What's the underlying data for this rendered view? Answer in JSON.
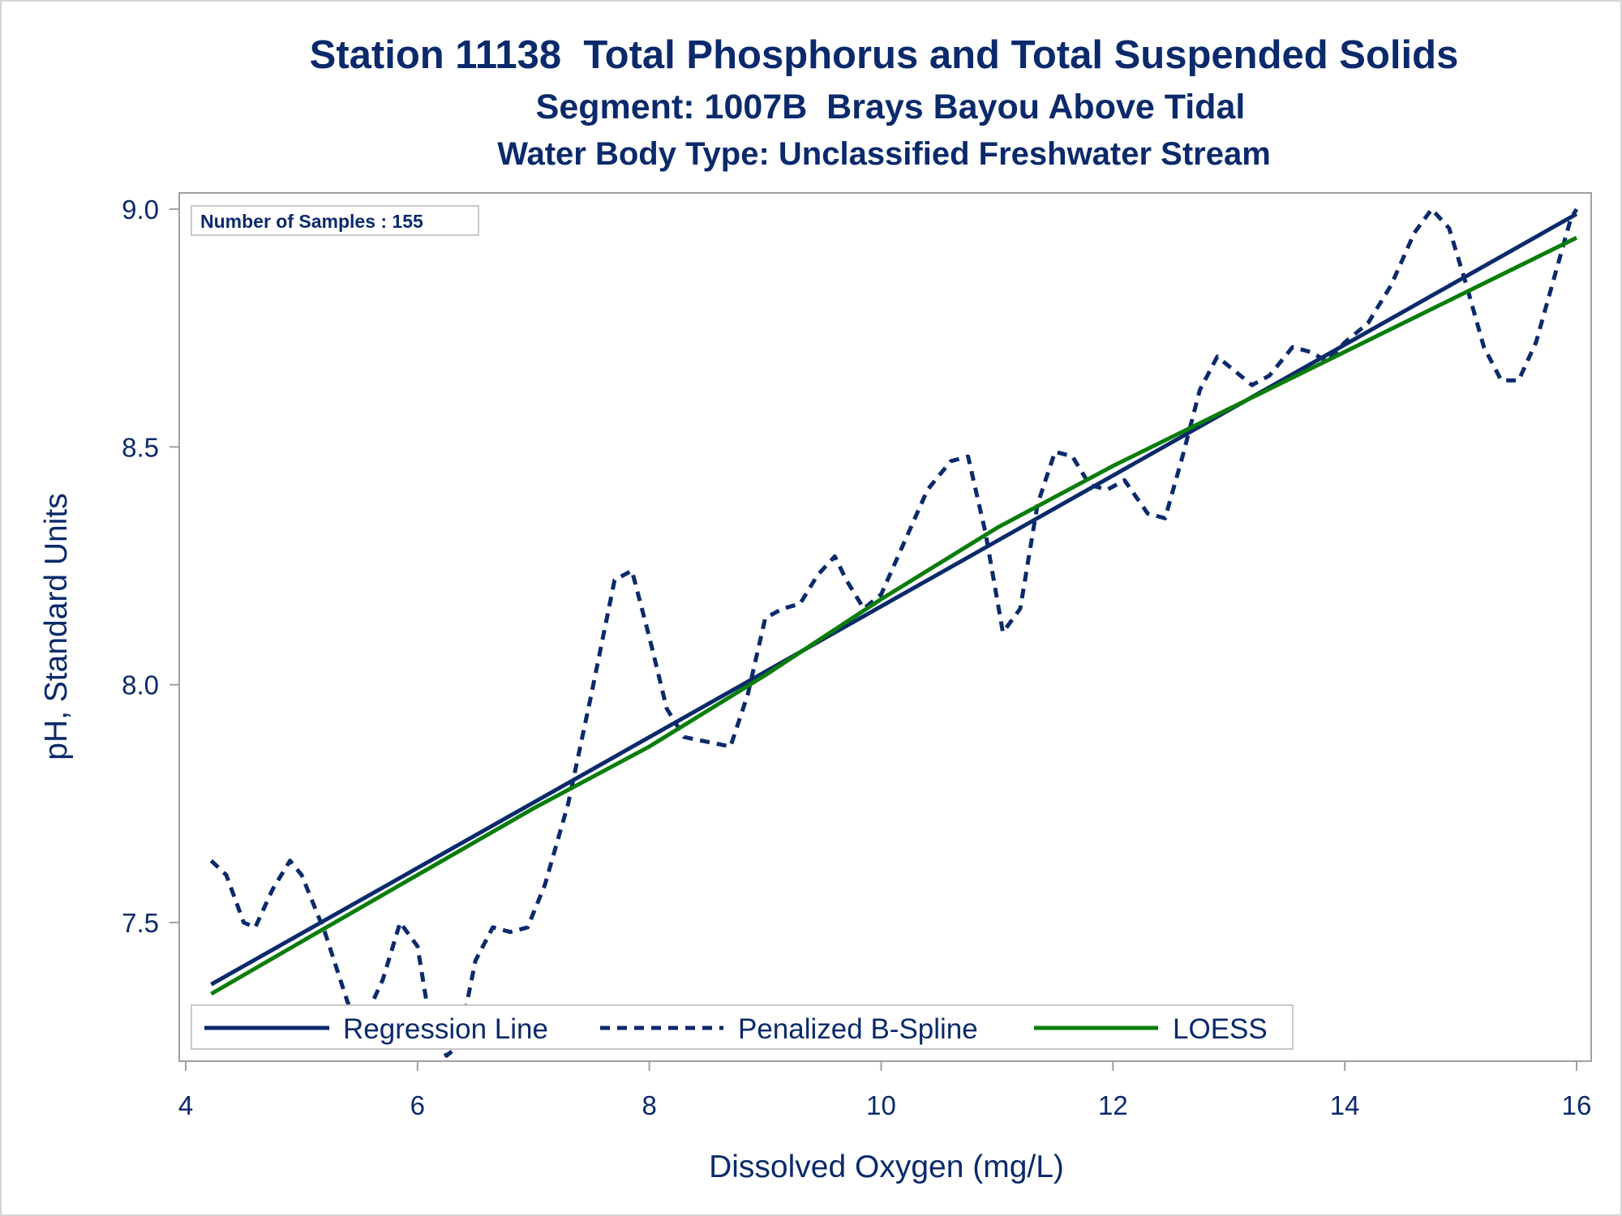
{
  "titles": {
    "line1": "Station 11138  Total Phosphorus and Total Suspended Solids",
    "line2": "Segment: 1007B  Brays Bayou Above Tidal",
    "line3": "Water Body Type: Unclassified Freshwater Stream"
  },
  "inset_label": "Number of Samples : 155",
  "colors": {
    "text": "#0b2a6b",
    "regression": "#0b2a6b",
    "spline": "#0b2a6b",
    "loess": "#0a7d0a",
    "frame": "#a0a0a0"
  },
  "chart_data": {
    "type": "line",
    "xlabel": "Dissolved Oxygen (mg/L)",
    "ylabel": "pH, Standard Units",
    "xlim": [
      4,
      16
    ],
    "ylim": [
      7.2,
      9.02
    ],
    "xticks": [
      "4",
      "6",
      "8",
      "10",
      "12",
      "14",
      "16"
    ],
    "yticks": [
      "7.5",
      "8.0",
      "8.5",
      "9.0"
    ],
    "grid": false,
    "legend_position": "bottom-inside",
    "series": [
      {
        "name": "Regression Line",
        "style": "solid",
        "x": [
          4.22,
          16.0
        ],
        "y": [
          7.37,
          8.99
        ]
      },
      {
        "name": "Penalized B-Spline",
        "style": "dashed",
        "x": [
          4.22,
          4.35,
          4.5,
          4.6,
          4.75,
          4.9,
          5.0,
          5.2,
          5.4,
          5.55,
          5.7,
          5.85,
          6.0,
          6.1,
          6.25,
          6.35,
          6.5,
          6.65,
          6.8,
          6.95,
          7.1,
          7.3,
          7.5,
          7.7,
          7.85,
          8.0,
          8.15,
          8.3,
          8.5,
          8.7,
          8.85,
          9.0,
          9.15,
          9.3,
          9.45,
          9.6,
          9.7,
          9.85,
          10.0,
          10.2,
          10.4,
          10.6,
          10.75,
          10.9,
          11.05,
          11.2,
          11.35,
          11.5,
          11.65,
          11.8,
          11.95,
          12.1,
          12.3,
          12.45,
          12.6,
          12.75,
          12.9,
          13.05,
          13.2,
          13.35,
          13.55,
          13.7,
          13.85,
          14.0,
          14.2,
          14.4,
          14.6,
          14.75,
          14.9,
          15.05,
          15.2,
          15.35,
          15.5,
          15.65,
          15.8,
          15.95,
          16.0
        ],
        "y": [
          7.63,
          7.6,
          7.5,
          7.49,
          7.57,
          7.63,
          7.6,
          7.48,
          7.33,
          7.3,
          7.38,
          7.5,
          7.45,
          7.3,
          7.22,
          7.24,
          7.42,
          7.49,
          7.48,
          7.49,
          7.58,
          7.75,
          7.98,
          8.22,
          8.24,
          8.1,
          7.95,
          7.89,
          7.88,
          7.87,
          7.98,
          8.14,
          8.16,
          8.17,
          8.23,
          8.27,
          8.22,
          8.16,
          8.19,
          8.3,
          8.41,
          8.47,
          8.48,
          8.32,
          8.11,
          8.16,
          8.38,
          8.49,
          8.48,
          8.42,
          8.41,
          8.43,
          8.36,
          8.35,
          8.48,
          8.62,
          8.69,
          8.66,
          8.63,
          8.65,
          8.71,
          8.7,
          8.68,
          8.72,
          8.76,
          8.84,
          8.95,
          9.0,
          8.96,
          8.84,
          8.71,
          8.64,
          8.64,
          8.72,
          8.85,
          8.98,
          9.0
        ]
      },
      {
        "name": "LOESS",
        "style": "solid",
        "x": [
          4.22,
          5.0,
          6.0,
          7.0,
          8.0,
          9.0,
          10.0,
          11.0,
          12.0,
          13.0,
          14.0,
          15.0,
          16.0
        ],
        "y": [
          7.35,
          7.46,
          7.6,
          7.74,
          7.87,
          8.02,
          8.18,
          8.33,
          8.46,
          8.58,
          8.7,
          8.82,
          8.94
        ]
      }
    ]
  }
}
